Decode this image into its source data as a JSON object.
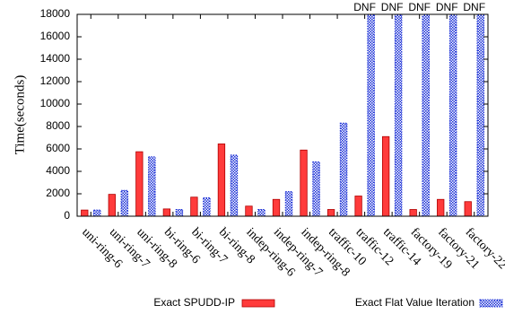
{
  "chart_data": {
    "type": "bar",
    "ylabel": "Time(seconds)",
    "xlabel": "",
    "title": "",
    "ylim": [
      0,
      18000
    ],
    "yticks": [
      0,
      2000,
      4000,
      6000,
      8000,
      10000,
      12000,
      14000,
      16000,
      18000
    ],
    "grid": false,
    "legend_position": "bottom",
    "categories": [
      "uni-ring-6",
      "uni-ring-7",
      "uni-ring-8",
      "bi-ring-6",
      "bi-ring-7",
      "bi-ring-8",
      "indep-ring-6",
      "indep-ring-7",
      "indep-ring-8",
      "traffic-10",
      "traffic-12",
      "traffic-14",
      "factory-19",
      "factory-21",
      "factory-22"
    ],
    "series": [
      {
        "name": "Exact SPUDD-IP",
        "color": "#ff3b3b",
        "values": [
          550,
          1950,
          5750,
          650,
          1700,
          6450,
          900,
          1500,
          5900,
          600,
          1800,
          7100,
          600,
          1500,
          1300
        ]
      },
      {
        "name": "Exact Flat Value Iteration",
        "color": "#1a2fd6",
        "values": [
          550,
          2300,
          5300,
          600,
          1650,
          5450,
          600,
          2200,
          4850,
          8300,
          18000,
          18000,
          18000,
          18000,
          18000
        ]
      }
    ],
    "annotations": [
      "DNF",
      "DNF",
      "DNF",
      "DNF",
      "DNF"
    ],
    "annotation_categories": [
      "traffic-12",
      "traffic-14",
      "factory-19",
      "factory-21",
      "factory-22"
    ]
  }
}
